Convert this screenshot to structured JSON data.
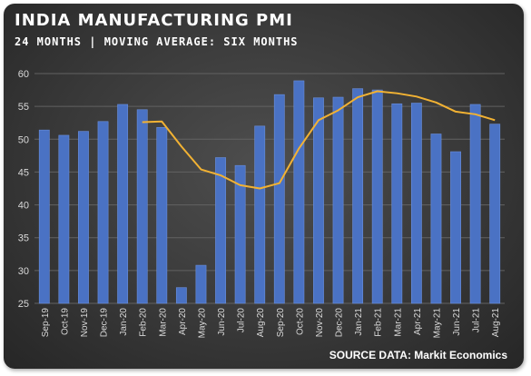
{
  "title": "INDIA MANUFACTURING PMI",
  "subtitle": "24 MONTHS | MOVING AVERAGE: SIX MONTHS",
  "source": "SOURCE DATA: Markit Economics",
  "colors": {
    "bar": "#4a72c4",
    "moving_average": "#f2b233",
    "grid": "#626262"
  },
  "chart_data": {
    "type": "bar",
    "title": "INDIA MANUFACTURING PMI",
    "subtitle": "24 MONTHS | MOVING AVERAGE: SIX MONTHS",
    "categories": [
      "Sep-19",
      "Oct-19",
      "Nov-19",
      "Dec-19",
      "Jan-20",
      "Feb-20",
      "Mar-20",
      "Apr-20",
      "May-20",
      "Jun-20",
      "Jul-20",
      "Aug-20",
      "Sep-20",
      "Oct-20",
      "Nov-20",
      "Dec-20",
      "Jan-21",
      "Feb-21",
      "Mar-21",
      "Apr-21",
      "May-21",
      "Jun-21",
      "Jul-21",
      "Aug-21"
    ],
    "series": [
      {
        "type": "bar",
        "values": [
          51.4,
          50.6,
          51.2,
          52.7,
          55.3,
          54.5,
          51.8,
          27.4,
          30.8,
          47.2,
          46.0,
          52.0,
          56.8,
          58.9,
          56.3,
          56.4,
          57.7,
          57.5,
          55.4,
          55.5,
          50.8,
          48.1,
          55.3,
          52.3
        ]
      },
      {
        "type": "line",
        "values": [
          null,
          null,
          null,
          null,
          null,
          52.6,
          52.7,
          48.9,
          45.4,
          44.5,
          43.0,
          42.5,
          43.3,
          48.6,
          52.9,
          54.4,
          56.4,
          57.3,
          57.0,
          56.5,
          55.6,
          54.2,
          53.8,
          52.9
        ]
      }
    ],
    "xlabel": "",
    "ylabel": "",
    "ylim": [
      25,
      60
    ],
    "yticks": [
      25,
      30,
      35,
      40,
      45,
      50,
      55,
      60
    ],
    "grid": true,
    "legend": "none"
  }
}
